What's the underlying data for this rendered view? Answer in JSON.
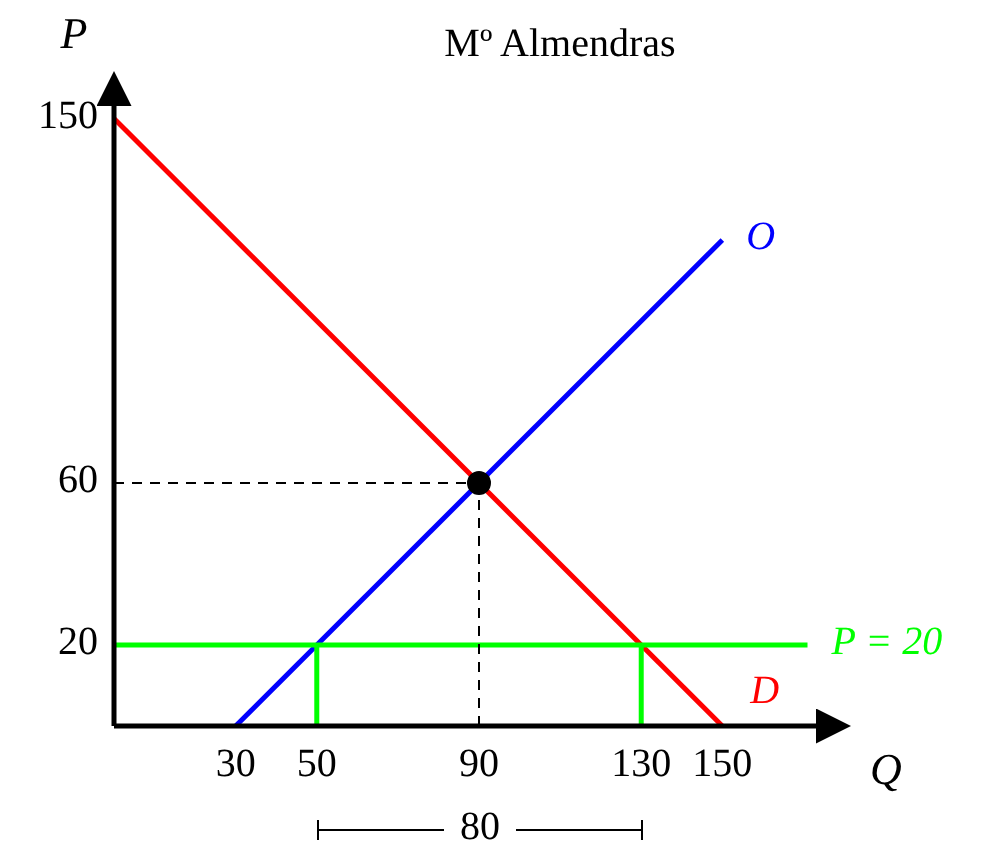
{
  "chart_data": {
    "type": "line",
    "title": "Mº Almendras",
    "xlabel": "Q",
    "ylabel": "P",
    "xlim": [
      0,
      180
    ],
    "ylim": [
      0,
      160
    ],
    "xticks": [
      30,
      50,
      90,
      130,
      150
    ],
    "yticks": [
      20,
      60,
      150
    ],
    "grid": false,
    "series": [
      {
        "name": "D",
        "color": "#ff0000",
        "x": [
          0,
          150
        ],
        "values": [
          150,
          0
        ]
      },
      {
        "name": "O",
        "color": "#0000ff",
        "x": [
          30,
          150
        ],
        "values": [
          0,
          120
        ]
      },
      {
        "name": "P = 20",
        "color": "#00ff00",
        "x": [
          0,
          171
        ],
        "values": [
          20,
          20
        ]
      },
      {
        "color": "#00ff00",
        "x": [
          50,
          50
        ],
        "values": [
          0,
          20
        ]
      },
      {
        "color": "#00ff00",
        "x": [
          130,
          130
        ],
        "values": [
          0,
          20
        ]
      },
      {
        "color": "#000000",
        "x": [
          0,
          90
        ],
        "values": [
          60,
          60
        ],
        "line_style": "dashed"
      },
      {
        "color": "#000000",
        "x": [
          90,
          90
        ],
        "values": [
          0,
          60
        ],
        "line_style": "dashed"
      },
      {
        "type": "scatter",
        "color": "#000000",
        "x": [
          90
        ],
        "values": [
          60
        ],
        "marker": "circle"
      }
    ],
    "annotations": [
      "80"
    ]
  }
}
